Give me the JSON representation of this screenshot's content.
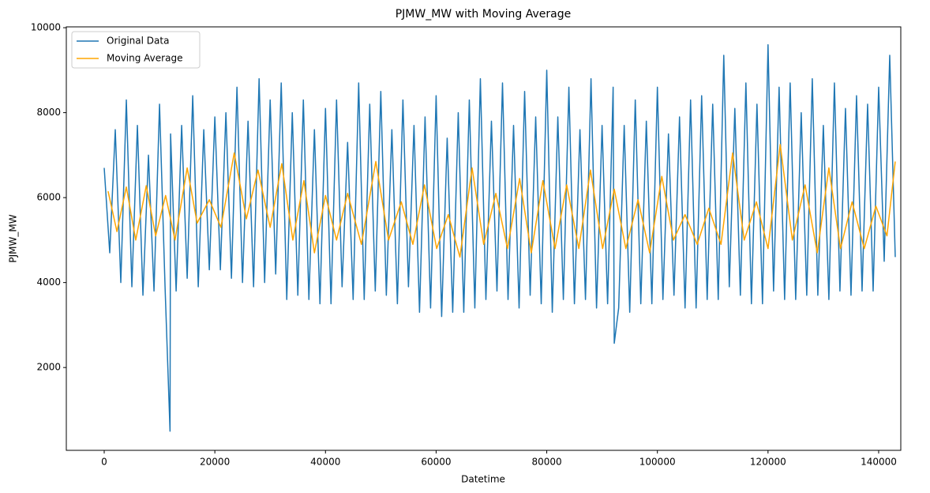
{
  "chart_data": {
    "type": "line",
    "title": "PJMW_MW with Moving Average",
    "xlabel": "Datetime",
    "ylabel": "PJMW_MW",
    "xlim": [
      -6850,
      144000
    ],
    "ylim": [
      50,
      10020
    ],
    "xticks": [
      0,
      20000,
      40000,
      60000,
      80000,
      100000,
      120000,
      140000
    ],
    "yticks": [
      2000,
      4000,
      6000,
      8000,
      10000
    ],
    "legend": "upper left",
    "series": [
      {
        "name": "Original Data",
        "color": "#1f77b4",
        "x": [
          0,
          1000,
          2000,
          3000,
          4000,
          5000,
          6000,
          7000,
          8000,
          9000,
          10000,
          11000,
          11900,
          12000,
          13000,
          14000,
          15000,
          16000,
          17000,
          18000,
          19000,
          20000,
          21000,
          22000,
          23000,
          24000,
          25000,
          26000,
          27000,
          28000,
          29000,
          30000,
          31000,
          32000,
          33000,
          34000,
          35000,
          36000,
          37000,
          38000,
          39000,
          40000,
          41000,
          42000,
          43000,
          44000,
          45000,
          46000,
          47000,
          48000,
          49000,
          50000,
          51000,
          52000,
          53000,
          54000,
          55000,
          56000,
          57000,
          58000,
          59000,
          60000,
          61000,
          62000,
          63000,
          64000,
          65000,
          66000,
          67000,
          68000,
          69000,
          70000,
          71000,
          72000,
          73000,
          74000,
          75000,
          76000,
          77000,
          78000,
          79000,
          80000,
          81000,
          82000,
          83000,
          84000,
          85000,
          86000,
          87000,
          88000,
          89000,
          90000,
          91000,
          92000,
          92200,
          93000,
          94000,
          95000,
          96000,
          97000,
          98000,
          99000,
          100000,
          101000,
          102000,
          103000,
          104000,
          105000,
          106000,
          107000,
          108000,
          109000,
          110000,
          111000,
          112000,
          113000,
          114000,
          115000,
          116000,
          117000,
          118000,
          119000,
          120000,
          121000,
          122000,
          123000,
          124000,
          125000,
          126000,
          127000,
          128000,
          129000,
          130000,
          131000,
          132000,
          133000,
          134000,
          135000,
          136000,
          137000,
          138000,
          139000,
          140000,
          141000,
          142000,
          143000
        ],
        "values": [
          6700,
          4700,
          7600,
          4000,
          8300,
          3900,
          7700,
          3700,
          7000,
          3800,
          8200,
          3900,
          500,
          7500,
          3800,
          7700,
          4100,
          8400,
          3900,
          7600,
          4300,
          7900,
          4300,
          8000,
          4100,
          8600,
          4000,
          7800,
          3900,
          8800,
          4000,
          8300,
          4200,
          8700,
          3600,
          8000,
          3700,
          8300,
          3600,
          7600,
          3500,
          8100,
          3500,
          8300,
          3900,
          7300,
          3600,
          8700,
          3600,
          8200,
          3800,
          8500,
          3700,
          7600,
          3500,
          8300,
          3900,
          7700,
          3300,
          7900,
          3400,
          8400,
          3200,
          7400,
          3300,
          8000,
          3300,
          8300,
          3400,
          8800,
          3600,
          7800,
          3800,
          8700,
          3600,
          7700,
          3400,
          8500,
          3700,
          7900,
          3500,
          9000,
          3300,
          7900,
          3600,
          8600,
          3500,
          7600,
          3600,
          8800,
          3400,
          7700,
          3500,
          8600,
          2570,
          3400,
          7700,
          3300,
          8300,
          3500,
          7800,
          3500,
          8600,
          3600,
          7500,
          3700,
          7900,
          3400,
          8300,
          3400,
          8400,
          3600,
          8200,
          3600,
          9350,
          3900,
          8100,
          3700,
          8700,
          3500,
          8200,
          3500,
          9600,
          3800,
          8600,
          3600,
          8700,
          3600,
          8000,
          3700,
          8800,
          3700,
          7700,
          3600,
          8700,
          3800,
          8100,
          3700,
          8400,
          3800,
          8200,
          3800,
          8600,
          4500,
          9350,
          4600
        ]
      },
      {
        "name": "Moving Average",
        "color": "#ffa500",
        "x": [
          700,
          2300,
          4000,
          5700,
          7600,
          9300,
          11100,
          12800,
          15000,
          16800,
          19000,
          21100,
          23500,
          25700,
          27800,
          30000,
          32100,
          34100,
          36100,
          38000,
          40000,
          42000,
          44000,
          46500,
          49100,
          51400,
          53700,
          55800,
          57900,
          60100,
          62200,
          64300,
          66500,
          68600,
          70800,
          72900,
          75100,
          77200,
          79300,
          81500,
          83600,
          85800,
          87900,
          90100,
          92200,
          94300,
          96500,
          98600,
          100800,
          102900,
          105000,
          107200,
          109300,
          111500,
          113600,
          115700,
          117900,
          120000,
          122200,
          124400,
          126700,
          128900,
          131000,
          133100,
          135200,
          137400,
          139500,
          141500,
          143000
        ],
        "values": [
          6150,
          5200,
          6250,
          5000,
          6280,
          5100,
          6050,
          5000,
          6700,
          5400,
          5950,
          5300,
          7050,
          5500,
          6650,
          5300,
          6800,
          5000,
          6400,
          4700,
          6050,
          5000,
          6100,
          4900,
          6850,
          5000,
          5900,
          4900,
          6300,
          4800,
          5600,
          4600,
          6700,
          4900,
          6100,
          4800,
          6450,
          4700,
          6400,
          4800,
          6300,
          4800,
          6650,
          4800,
          6200,
          4800,
          5950,
          4700,
          6500,
          5000,
          5600,
          4900,
          5750,
          4900,
          7050,
          5000,
          5900,
          4800,
          7250,
          5000,
          6300,
          4700,
          6700,
          4800,
          5900,
          4800,
          5800,
          5100,
          6850
        ]
      }
    ]
  }
}
